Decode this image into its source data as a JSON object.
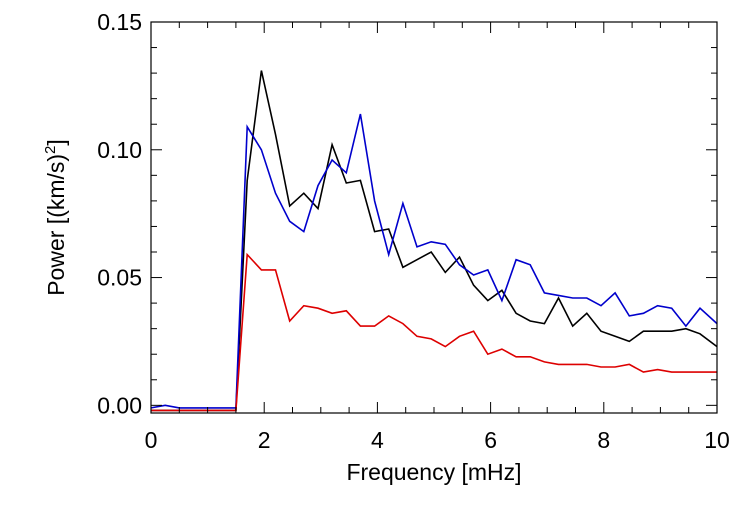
{
  "chart_data": {
    "type": "line",
    "title": "",
    "xlabel": "Frequency [mHz]",
    "ylabel_main": "Power [(km/s)",
    "ylabel_sup": "2",
    "ylabel_end": "]",
    "xlim": [
      0,
      10
    ],
    "ylim": [
      -0.003,
      0.15
    ],
    "x_ticks": [
      0,
      2,
      4,
      6,
      8,
      10
    ],
    "x_tick_labels": [
      "0",
      "2",
      "4",
      "6",
      "8",
      "10"
    ],
    "x_minor_step": 0.5,
    "y_ticks": [
      0.0,
      0.05,
      0.1,
      0.15
    ],
    "y_tick_labels": [
      "0.00",
      "0.05",
      "0.10",
      "0.15"
    ],
    "y_minor_step": 0.01,
    "grid": false,
    "legend": "none",
    "x": [
      0.0,
      0.25,
      0.5,
      0.75,
      1.0,
      1.25,
      1.5,
      1.7,
      1.95,
      2.2,
      2.45,
      2.7,
      2.95,
      3.2,
      3.45,
      3.7,
      3.95,
      4.2,
      4.45,
      4.7,
      4.95,
      5.2,
      5.45,
      5.7,
      5.95,
      6.2,
      6.45,
      6.7,
      6.95,
      7.2,
      7.45,
      7.7,
      7.95,
      8.2,
      8.45,
      8.7,
      8.95,
      9.2,
      9.45,
      9.7,
      10.0
    ],
    "series": [
      {
        "color": "#000000",
        "values": [
          -0.002,
          -0.002,
          -0.002,
          -0.002,
          -0.002,
          -0.002,
          -0.002,
          0.088,
          0.131,
          0.106,
          0.078,
          0.083,
          0.077,
          0.102,
          0.087,
          0.088,
          0.068,
          0.069,
          0.054,
          0.057,
          0.06,
          0.052,
          0.058,
          0.047,
          0.041,
          0.045,
          0.036,
          0.033,
          0.032,
          0.042,
          0.031,
          0.036,
          0.029,
          0.027,
          0.025,
          0.029,
          0.029,
          0.029,
          0.03,
          0.028,
          0.023
        ]
      },
      {
        "color": "#0000cc",
        "values": [
          -0.001,
          0.0,
          -0.001,
          -0.001,
          -0.001,
          -0.001,
          -0.001,
          0.109,
          0.1,
          0.083,
          0.072,
          0.068,
          0.086,
          0.096,
          0.091,
          0.114,
          0.08,
          0.059,
          0.079,
          0.062,
          0.064,
          0.063,
          0.055,
          0.051,
          0.053,
          0.041,
          0.057,
          0.055,
          0.044,
          0.043,
          0.042,
          0.042,
          0.039,
          0.044,
          0.035,
          0.036,
          0.039,
          0.038,
          0.031,
          0.038,
          0.032
        ]
      },
      {
        "color": "#dd0000",
        "values": [
          -0.002,
          -0.002,
          -0.002,
          -0.002,
          -0.002,
          -0.002,
          -0.002,
          0.059,
          0.053,
          0.053,
          0.033,
          0.039,
          0.038,
          0.036,
          0.037,
          0.031,
          0.031,
          0.035,
          0.032,
          0.027,
          0.026,
          0.023,
          0.027,
          0.029,
          0.02,
          0.022,
          0.019,
          0.019,
          0.017,
          0.016,
          0.016,
          0.016,
          0.015,
          0.015,
          0.016,
          0.013,
          0.014,
          0.013,
          0.013,
          0.013,
          0.013
        ]
      }
    ]
  }
}
